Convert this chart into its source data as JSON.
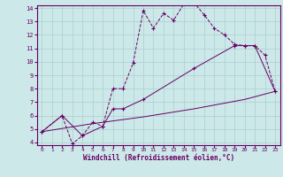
{
  "xlabel": "Windchill (Refroidissement éolien,°C)",
  "bg_color": "#cce8e8",
  "line_color": "#660066",
  "grid_color": "#aacfcf",
  "xlim": [
    -0.5,
    23.5
  ],
  "ylim": [
    3.8,
    14.2
  ],
  "xticks": [
    0,
    1,
    2,
    3,
    4,
    5,
    6,
    7,
    8,
    9,
    10,
    11,
    12,
    13,
    14,
    15,
    16,
    17,
    18,
    19,
    20,
    21,
    22,
    23
  ],
  "yticks": [
    4,
    5,
    6,
    7,
    8,
    9,
    10,
    11,
    12,
    13,
    14
  ],
  "line1_x": [
    0,
    2,
    3,
    4,
    5,
    6,
    7,
    8,
    9,
    10,
    11,
    12,
    13,
    14,
    15,
    16,
    17,
    18,
    19,
    20,
    21,
    22,
    23
  ],
  "line1_y": [
    4.8,
    6.0,
    3.9,
    4.5,
    5.5,
    5.2,
    8.0,
    8.0,
    9.9,
    13.8,
    12.5,
    13.6,
    13.1,
    14.3,
    14.4,
    13.5,
    12.5,
    12.0,
    11.3,
    11.2,
    11.2,
    10.5,
    7.8
  ],
  "line2_x": [
    0,
    2,
    4,
    6,
    7,
    8,
    10,
    15,
    19,
    20,
    21,
    23
  ],
  "line2_y": [
    4.8,
    6.0,
    4.5,
    5.2,
    6.5,
    6.5,
    7.2,
    9.5,
    11.2,
    11.2,
    11.2,
    7.8
  ],
  "line3_x": [
    0,
    5,
    10,
    15,
    20,
    23
  ],
  "line3_y": [
    4.8,
    5.4,
    5.9,
    6.5,
    7.2,
    7.8
  ],
  "xlabel_fontsize": 5.5,
  "tick_fontsize_x": 4.5,
  "tick_fontsize_y": 5.0
}
